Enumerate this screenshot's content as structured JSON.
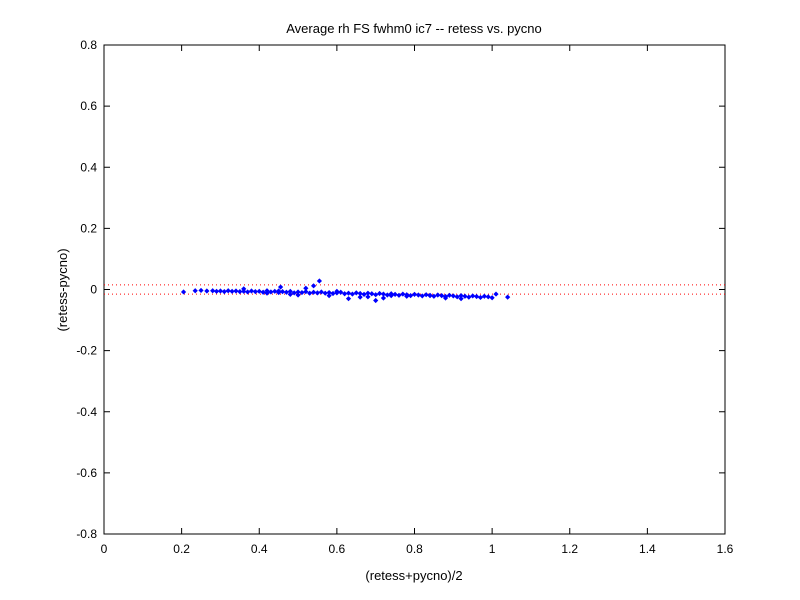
{
  "chart_data": {
    "type": "scatter",
    "title": "Average rh FS fwhm0 ic7 -- retess vs. pycno",
    "xlabel": "(retess+pycno)/2",
    "ylabel": "(retess-pycno)",
    "xlim": [
      0,
      1.6
    ],
    "ylim": [
      -0.8,
      0.8
    ],
    "x_ticks": [
      0,
      0.2,
      0.4,
      0.6,
      0.8,
      1,
      1.2,
      1.4,
      1.6
    ],
    "y_ticks": [
      -0.8,
      -0.6,
      -0.4,
      -0.2,
      0,
      0.2,
      0.4,
      0.6,
      0.8
    ],
    "x_tick_labels": [
      "0",
      "0.2",
      "0.4",
      "0.6",
      "0.8",
      "1",
      "1.2",
      "1.4",
      "1.6"
    ],
    "y_tick_labels": [
      "-0.8",
      "-0.6",
      "-0.4",
      "-0.2",
      "0",
      "0.2",
      "0.4",
      "0.6",
      "0.8"
    ],
    "grid": false,
    "marker_color": "#0000ff",
    "reference_line_color": "#ff0000",
    "reference_lines_y": [
      0.015,
      -0.015
    ],
    "series": [
      {
        "x": [
          0.205,
          0.235,
          0.25,
          0.265,
          0.28,
          0.29,
          0.3,
          0.31,
          0.32,
          0.33,
          0.34,
          0.35,
          0.36,
          0.37,
          0.38,
          0.39,
          0.4,
          0.41,
          0.42,
          0.43,
          0.44,
          0.45,
          0.455,
          0.46,
          0.47,
          0.48,
          0.49,
          0.5,
          0.51,
          0.52,
          0.53,
          0.54,
          0.55,
          0.555,
          0.56,
          0.57,
          0.58,
          0.59,
          0.6,
          0.61,
          0.62,
          0.63,
          0.64,
          0.65,
          0.66,
          0.67,
          0.68,
          0.69,
          0.7,
          0.71,
          0.72,
          0.73,
          0.74,
          0.75,
          0.76,
          0.77,
          0.78,
          0.79,
          0.8,
          0.81,
          0.82,
          0.83,
          0.84,
          0.85,
          0.86,
          0.87,
          0.88,
          0.89,
          0.9,
          0.91,
          0.92,
          0.93,
          0.94,
          0.95,
          0.96,
          0.97,
          0.98,
          0.99,
          1.0,
          1.01,
          1.04,
          0.63,
          0.7,
          0.45,
          0.5,
          0.54,
          0.58,
          0.66,
          0.72,
          0.78,
          0.84,
          0.88,
          0.92,
          0.36,
          0.42,
          0.48,
          0.52,
          0.6,
          0.68,
          0.74
        ],
        "y": [
          -0.008,
          -0.004,
          -0.003,
          -0.005,
          -0.004,
          -0.006,
          -0.005,
          -0.007,
          -0.004,
          -0.006,
          -0.005,
          -0.007,
          -0.006,
          -0.008,
          -0.005,
          -0.007,
          -0.006,
          -0.009,
          -0.004,
          -0.008,
          -0.006,
          -0.01,
          0.008,
          -0.007,
          -0.009,
          -0.006,
          -0.011,
          -0.008,
          -0.01,
          -0.007,
          -0.012,
          -0.009,
          -0.011,
          0.028,
          -0.008,
          -0.012,
          -0.01,
          -0.013,
          -0.011,
          -0.009,
          -0.014,
          -0.012,
          -0.015,
          -0.011,
          -0.013,
          -0.016,
          -0.012,
          -0.014,
          -0.017,
          -0.013,
          -0.015,
          -0.018,
          -0.014,
          -0.016,
          -0.019,
          -0.015,
          -0.017,
          -0.02,
          -0.016,
          -0.018,
          -0.021,
          -0.017,
          -0.019,
          -0.022,
          -0.018,
          -0.02,
          -0.023,
          -0.019,
          -0.021,
          -0.024,
          -0.02,
          -0.022,
          -0.025,
          -0.021,
          -0.023,
          -0.026,
          -0.022,
          -0.024,
          -0.027,
          -0.015,
          -0.025,
          -0.03,
          -0.036,
          -0.005,
          -0.018,
          0.012,
          -0.02,
          -0.025,
          -0.028,
          -0.022,
          -0.02,
          -0.028,
          -0.03,
          0.002,
          -0.012,
          -0.016,
          0.004,
          -0.006,
          -0.024,
          -0.02
        ]
      }
    ]
  }
}
